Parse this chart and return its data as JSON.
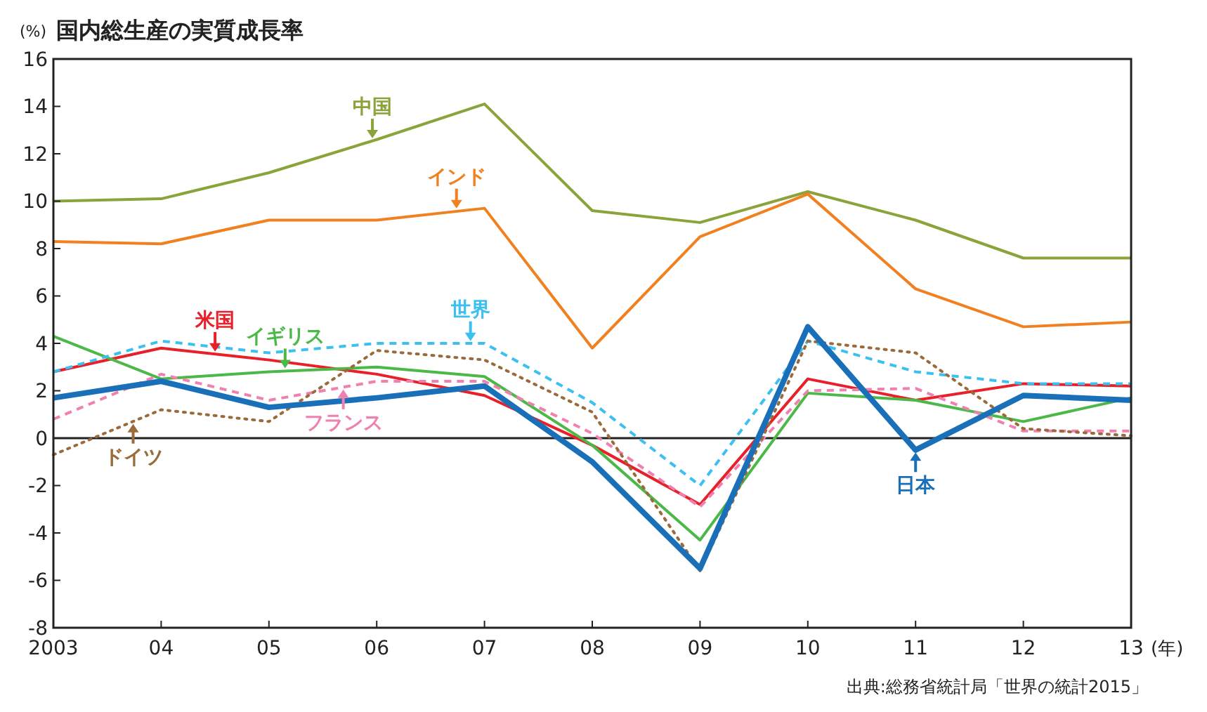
{
  "chart_data": {
    "type": "line",
    "title": "国内総生産の実質成長率",
    "ylabel": "(%)",
    "xlabel": "(年)",
    "x": [
      2003,
      2004,
      2005,
      2006,
      2007,
      2008,
      2009,
      2010,
      2011,
      2012,
      2013
    ],
    "xlim": [
      2003,
      2013
    ],
    "xticks": [
      {
        "value": 2003,
        "label": "2003"
      },
      {
        "value": 2004,
        "label": "04"
      },
      {
        "value": 2005,
        "label": "05"
      },
      {
        "value": 2006,
        "label": "06"
      },
      {
        "value": 2007,
        "label": "07"
      },
      {
        "value": 2008,
        "label": "08"
      },
      {
        "value": 2009,
        "label": "09"
      },
      {
        "value": 2010,
        "label": "10"
      },
      {
        "value": 2011,
        "label": "11"
      },
      {
        "value": 2012,
        "label": "12"
      },
      {
        "value": 2013,
        "label": "13"
      }
    ],
    "ylim": [
      -8,
      16
    ],
    "yticks": [
      -8,
      -6,
      -4,
      -2,
      0,
      2,
      4,
      6,
      8,
      10,
      12,
      14,
      16
    ],
    "grid": false,
    "series": [
      {
        "color": "#8aa33a",
        "line_style": "solid",
        "values": [
          10.0,
          10.1,
          11.2,
          12.6,
          14.1,
          9.6,
          9.1,
          10.4,
          9.2,
          7.6,
          7.6
        ]
      },
      {
        "color": "#f08020",
        "line_style": "solid",
        "values": [
          8.3,
          8.2,
          9.2,
          9.2,
          9.7,
          3.8,
          8.5,
          10.3,
          6.3,
          4.7,
          4.9
        ]
      },
      {
        "color": "#e8202a",
        "line_style": "solid",
        "values": [
          2.8,
          3.8,
          3.3,
          2.7,
          1.8,
          -0.3,
          -2.8,
          2.5,
          1.6,
          2.3,
          2.2
        ]
      },
      {
        "color": "#4cb848",
        "line_style": "solid",
        "values": [
          4.3,
          2.5,
          2.8,
          3.0,
          2.6,
          -0.3,
          -4.3,
          1.9,
          1.6,
          0.7,
          1.7
        ]
      },
      {
        "color": "#3cc0f0",
        "line_style": "dashed",
        "values": [
          2.8,
          4.1,
          3.6,
          4.0,
          4.0,
          1.5,
          -2.0,
          4.1,
          2.8,
          2.3,
          2.3
        ]
      },
      {
        "color": "#f080b0",
        "line_style": "dashed",
        "values": [
          0.8,
          2.7,
          1.6,
          2.4,
          2.4,
          0.2,
          -2.9,
          2.0,
          2.1,
          0.3,
          0.3
        ]
      },
      {
        "color": "#9a6a3a",
        "line_style": "dotted",
        "values": [
          -0.7,
          1.2,
          0.7,
          3.7,
          3.3,
          1.1,
          -5.6,
          4.1,
          3.6,
          0.4,
          0.1
        ]
      },
      {
        "color": "#1a70b8",
        "line_style": "solid",
        "values": [
          1.7,
          2.4,
          1.3,
          1.7,
          2.2,
          -1.0,
          -5.5,
          4.7,
          -0.5,
          1.8,
          1.6
        ]
      }
    ],
    "annotations": [
      {
        "text": "中国",
        "x": 2005.96,
        "y": 12.65
      },
      {
        "text": "インド",
        "x": 2006.74,
        "y": 9.7
      },
      {
        "text": "米国",
        "x": 2004.5,
        "y": 3.65
      },
      {
        "text": "イギリス",
        "x": 2005.15,
        "y": 2.95
      },
      {
        "text": "世界",
        "x": 2006.87,
        "y": 4.1
      },
      {
        "text": "フランス",
        "x": 2005.69,
        "y": 2.05
      },
      {
        "text": "ドイツ",
        "x": 2003.74,
        "y": 0.6
      },
      {
        "text": "日本",
        "x": 2011.0,
        "y": -0.6
      },
      "出典:総務省統計局「世界の統計2015」"
    ],
    "ref_lines": [
      {
        "axis": "y",
        "value": 0,
        "color": "#222222"
      }
    ]
  }
}
